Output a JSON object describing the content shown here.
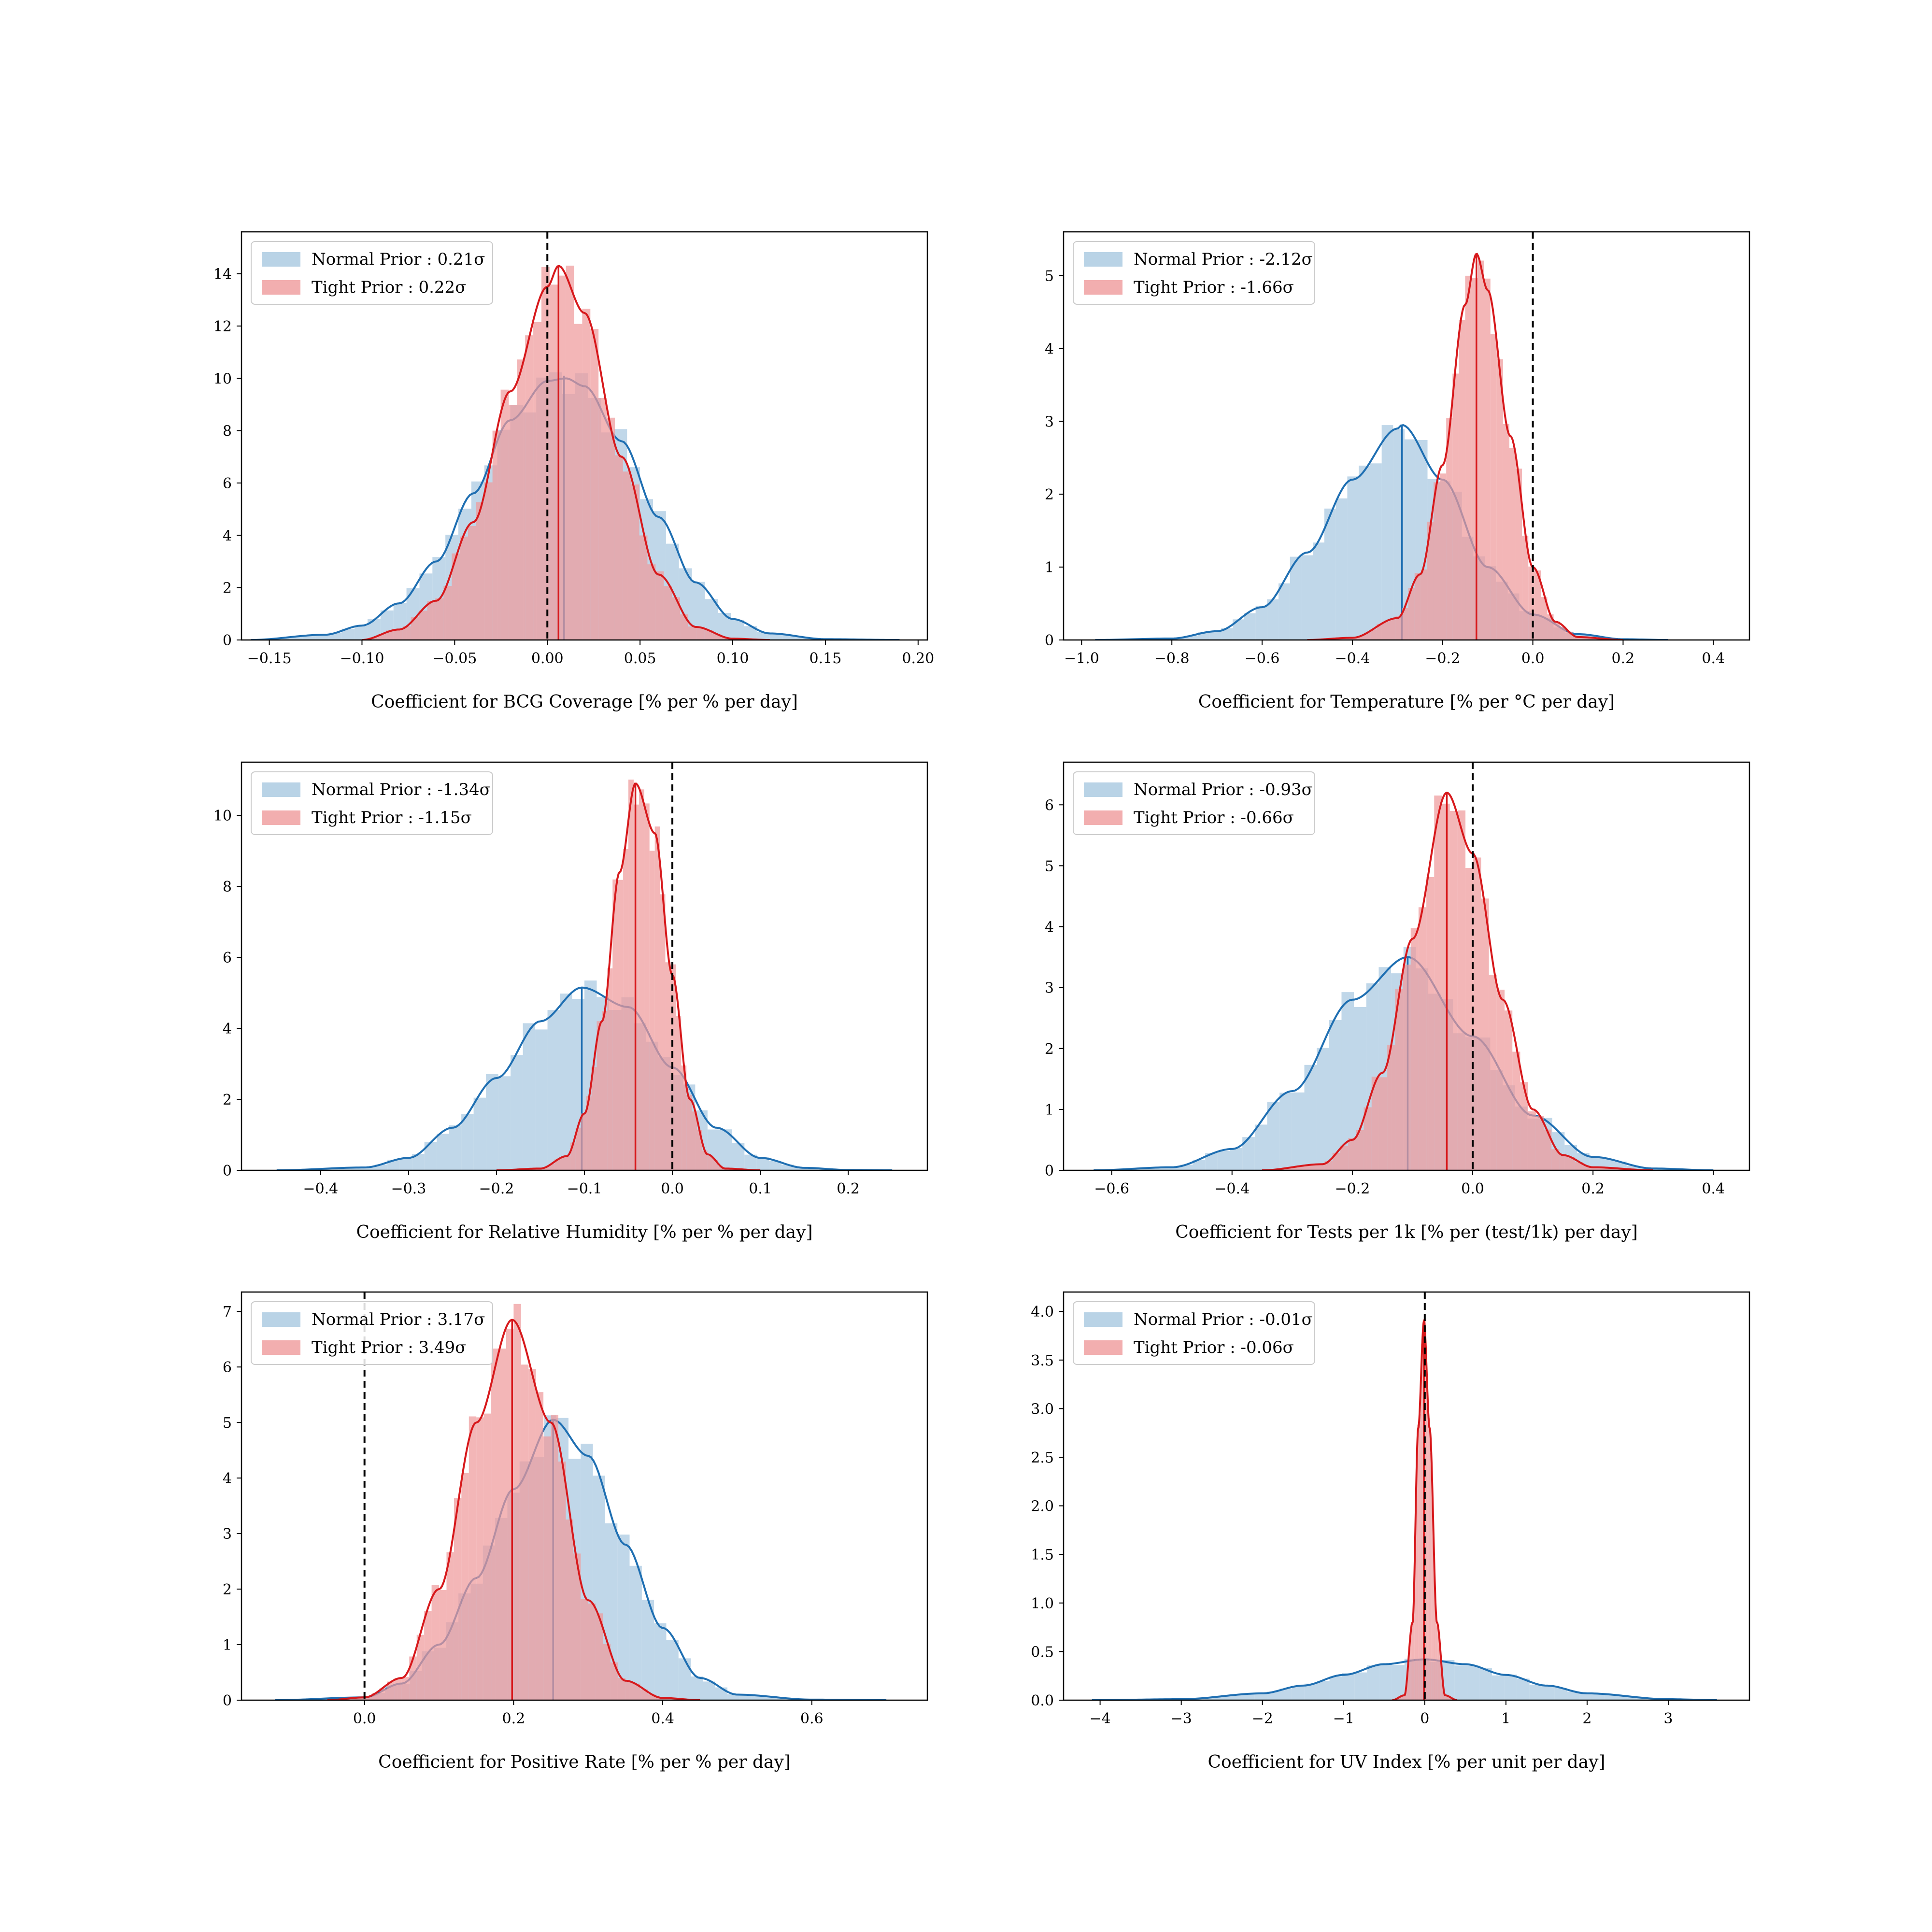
{
  "chart_data": [
    {
      "type": "histogram",
      "xlabel": "Coefficient for BCG Coverage [% per % per day]",
      "xlim": [
        -0.165,
        0.205
      ],
      "ylim": [
        0,
        15.6
      ],
      "xticks": [
        -0.15,
        -0.1,
        -0.05,
        0.0,
        0.05,
        0.1,
        0.15,
        0.2
      ],
      "xtick_labels": [
        "−0.15",
        "−0.10",
        "−0.05",
        "0.00",
        "0.05",
        "0.10",
        "0.15",
        "0.20"
      ],
      "yticks": [
        0,
        2,
        4,
        6,
        8,
        10,
        12,
        14
      ],
      "ytick_labels": [
        "0",
        "2",
        "4",
        "6",
        "8",
        "10",
        "12",
        "14"
      ],
      "reference_line_x": 0.0,
      "legend_position": "upper-left",
      "series": [
        {
          "legend": "Normal Prior : 0.21σ",
          "color": "#1f6fb2",
          "fill": "#a7c8e0",
          "mean": 0.009,
          "peak": 10.1,
          "kde_x": [
            -0.16,
            -0.12,
            -0.1,
            -0.08,
            -0.06,
            -0.04,
            -0.02,
            0.0,
            0.01,
            0.02,
            0.04,
            0.06,
            0.08,
            0.1,
            0.12,
            0.15,
            0.19
          ],
          "kde_y": [
            0.0,
            0.2,
            0.55,
            1.4,
            3.0,
            5.6,
            8.4,
            9.9,
            10.0,
            9.7,
            7.6,
            4.7,
            2.2,
            0.8,
            0.25,
            0.03,
            0.0
          ]
        },
        {
          "legend": "Tight Prior : 0.22σ",
          "color": "#d7191c",
          "fill": "#ef9a9b",
          "mean": 0.006,
          "peak": 14.3,
          "kde_x": [
            -0.1,
            -0.08,
            -0.06,
            -0.04,
            -0.02,
            0.0,
            0.006,
            0.02,
            0.04,
            0.06,
            0.08,
            0.1,
            0.12
          ],
          "kde_y": [
            0.0,
            0.4,
            1.5,
            4.5,
            9.5,
            13.5,
            14.3,
            12.5,
            7.0,
            2.5,
            0.5,
            0.05,
            0.0
          ]
        }
      ]
    },
    {
      "type": "histogram",
      "xlabel": "Coefficient for Temperature [% per °C per day]",
      "xlim": [
        -1.04,
        0.48
      ],
      "ylim": [
        0,
        5.6
      ],
      "xticks": [
        -1.0,
        -0.8,
        -0.6,
        -0.4,
        -0.2,
        0.0,
        0.2,
        0.4
      ],
      "xtick_labels": [
        "−1.0",
        "−0.8",
        "−0.6",
        "−0.4",
        "−0.2",
        "0.0",
        "0.2",
        "0.4"
      ],
      "yticks": [
        0,
        1,
        2,
        3,
        4,
        5
      ],
      "ytick_labels": [
        "0",
        "1",
        "2",
        "3",
        "4",
        "5"
      ],
      "reference_line_x": 0.0,
      "legend_position": "upper-left",
      "series": [
        {
          "legend": "Normal Prior : -2.12σ",
          "color": "#1f6fb2",
          "fill": "#a7c8e0",
          "mean": -0.29,
          "peak": 2.95,
          "kde_x": [
            -0.97,
            -0.8,
            -0.7,
            -0.6,
            -0.5,
            -0.4,
            -0.3,
            -0.29,
            -0.2,
            -0.1,
            0.0,
            0.1,
            0.2,
            0.3
          ],
          "kde_y": [
            0.0,
            0.02,
            0.12,
            0.45,
            1.2,
            2.2,
            2.9,
            2.95,
            2.2,
            1.0,
            0.35,
            0.08,
            0.01,
            0.0
          ]
        },
        {
          "legend": "Tight Prior : -1.66σ",
          "color": "#d7191c",
          "fill": "#ef9a9b",
          "mean": -0.125,
          "peak": 5.3,
          "kde_x": [
            -0.5,
            -0.4,
            -0.3,
            -0.25,
            -0.2,
            -0.15,
            -0.125,
            -0.1,
            -0.05,
            0.0,
            0.05,
            0.1,
            0.2
          ],
          "kde_y": [
            0.0,
            0.03,
            0.3,
            0.9,
            2.4,
            4.6,
            5.3,
            4.8,
            2.8,
            1.0,
            0.25,
            0.04,
            0.0
          ]
        }
      ]
    },
    {
      "type": "histogram",
      "xlabel": "Coefficient for Relative Humidity [% per % per day]",
      "xlim": [
        -0.49,
        0.29
      ],
      "ylim": [
        0,
        11.5
      ],
      "xticks": [
        -0.4,
        -0.3,
        -0.2,
        -0.1,
        0.0,
        0.1,
        0.2
      ],
      "xtick_labels": [
        "−0.4",
        "−0.3",
        "−0.2",
        "−0.1",
        "0.0",
        "0.1",
        "0.2"
      ],
      "yticks": [
        0,
        2,
        4,
        6,
        8,
        10
      ],
      "ytick_labels": [
        "0",
        "2",
        "4",
        "6",
        "8",
        "10"
      ],
      "reference_line_x": 0.0,
      "legend_position": "upper-left",
      "series": [
        {
          "legend": "Normal Prior : -1.34σ",
          "color": "#1f6fb2",
          "fill": "#a7c8e0",
          "mean": -0.103,
          "peak": 5.15,
          "kde_x": [
            -0.45,
            -0.35,
            -0.3,
            -0.25,
            -0.2,
            -0.15,
            -0.103,
            -0.05,
            0.0,
            0.05,
            0.1,
            0.15,
            0.2,
            0.25
          ],
          "kde_y": [
            0.0,
            0.08,
            0.35,
            1.2,
            2.6,
            4.2,
            5.15,
            4.6,
            2.9,
            1.2,
            0.35,
            0.07,
            0.01,
            0.0
          ]
        },
        {
          "legend": "Tight Prior : -1.15σ",
          "color": "#d7191c",
          "fill": "#ef9a9b",
          "mean": -0.042,
          "peak": 10.9,
          "kde_x": [
            -0.2,
            -0.15,
            -0.12,
            -0.1,
            -0.08,
            -0.06,
            -0.042,
            -0.02,
            0.0,
            0.02,
            0.04,
            0.06,
            0.1
          ],
          "kde_y": [
            0.0,
            0.05,
            0.4,
            1.6,
            4.2,
            8.4,
            10.9,
            9.5,
            5.5,
            2.0,
            0.45,
            0.05,
            0.0
          ]
        }
      ]
    },
    {
      "type": "histogram",
      "xlabel": "Coefficient for Tests per 1k [% per (test/1k) per day]",
      "xlim": [
        -0.68,
        0.46
      ],
      "ylim": [
        0,
        6.7
      ],
      "xticks": [
        -0.6,
        -0.4,
        -0.2,
        0.0,
        0.2,
        0.4
      ],
      "xtick_labels": [
        "−0.6",
        "−0.4",
        "−0.2",
        "0.0",
        "0.2",
        "0.4"
      ],
      "yticks": [
        0,
        1,
        2,
        3,
        4,
        5,
        6
      ],
      "ytick_labels": [
        "0",
        "1",
        "2",
        "3",
        "4",
        "5",
        "6"
      ],
      "reference_line_x": 0.0,
      "legend_position": "upper-left",
      "series": [
        {
          "legend": "Normal Prior : -0.93σ",
          "color": "#1f6fb2",
          "fill": "#a7c8e0",
          "mean": -0.108,
          "peak": 3.5,
          "kde_x": [
            -0.63,
            -0.5,
            -0.4,
            -0.3,
            -0.2,
            -0.108,
            0.0,
            0.1,
            0.2,
            0.3,
            0.4
          ],
          "kde_y": [
            0.0,
            0.05,
            0.35,
            1.3,
            2.8,
            3.5,
            2.2,
            0.9,
            0.22,
            0.03,
            0.0
          ]
        },
        {
          "legend": "Tight Prior : -0.66σ",
          "color": "#d7191c",
          "fill": "#ef9a9b",
          "mean": -0.043,
          "peak": 6.2,
          "kde_x": [
            -0.35,
            -0.25,
            -0.2,
            -0.15,
            -0.1,
            -0.043,
            0.0,
            0.05,
            0.1,
            0.15,
            0.2,
            0.3
          ],
          "kde_y": [
            0.0,
            0.1,
            0.5,
            1.6,
            3.8,
            6.2,
            5.2,
            2.8,
            1.0,
            0.25,
            0.05,
            0.0
          ]
        }
      ]
    },
    {
      "type": "histogram",
      "xlabel": "Coefficient for Positive Rate [% per % per day]",
      "xlim": [
        -0.165,
        0.755
      ],
      "ylim": [
        0,
        7.35
      ],
      "xticks": [
        0.0,
        0.2,
        0.4,
        0.6
      ],
      "xtick_labels": [
        "0.0",
        "0.2",
        "0.4",
        "0.6"
      ],
      "yticks": [
        0,
        1,
        2,
        3,
        4,
        5,
        6,
        7
      ],
      "ytick_labels": [
        "0",
        "1",
        "2",
        "3",
        "4",
        "5",
        "6",
        "7"
      ],
      "reference_line_x": 0.0,
      "legend_position": "upper-left",
      "series": [
        {
          "legend": "Normal Prior : 3.17σ",
          "color": "#1f6fb2",
          "fill": "#a7c8e0",
          "mean": 0.253,
          "peak": 5.05,
          "kde_x": [
            -0.12,
            0.0,
            0.05,
            0.1,
            0.15,
            0.2,
            0.253,
            0.3,
            0.35,
            0.4,
            0.45,
            0.5,
            0.6,
            0.7
          ],
          "kde_y": [
            0.0,
            0.05,
            0.3,
            1.0,
            2.2,
            3.8,
            5.05,
            4.4,
            2.8,
            1.3,
            0.4,
            0.1,
            0.01,
            0.0
          ]
        },
        {
          "legend": "Tight Prior : 3.49σ",
          "color": "#d7191c",
          "fill": "#ef9a9b",
          "mean": 0.198,
          "peak": 6.85,
          "kde_x": [
            -0.05,
            0.0,
            0.05,
            0.1,
            0.15,
            0.198,
            0.25,
            0.3,
            0.35,
            0.4,
            0.45
          ],
          "kde_y": [
            0.0,
            0.05,
            0.4,
            2.0,
            5.0,
            6.85,
            5.0,
            1.8,
            0.35,
            0.04,
            0.0
          ]
        }
      ]
    },
    {
      "type": "histogram",
      "xlabel": "Coefficient for UV Index [% per unit per day]",
      "xlim": [
        -4.45,
        4.0
      ],
      "ylim": [
        0,
        4.2
      ],
      "xticks": [
        -4,
        -3,
        -2,
        -1,
        0,
        1,
        2,
        3
      ],
      "xtick_labels": [
        "−4",
        "−3",
        "−2",
        "−1",
        "0",
        "1",
        "2",
        "3"
      ],
      "yticks": [
        0.0,
        0.5,
        1.0,
        1.5,
        2.0,
        2.5,
        3.0,
        3.5,
        4.0
      ],
      "ytick_labels": [
        "0.0",
        "0.5",
        "1.0",
        "1.5",
        "2.0",
        "2.5",
        "3.0",
        "3.5",
        "4.0"
      ],
      "reference_line_x": 0.0,
      "legend_position": "upper-left",
      "series": [
        {
          "legend": "Normal Prior : -0.01σ",
          "color": "#1f6fb2",
          "fill": "#a7c8e0",
          "mean": -0.01,
          "peak": 0.42,
          "kde_x": [
            -4.1,
            -3.0,
            -2.0,
            -1.5,
            -1.0,
            -0.5,
            0.0,
            0.5,
            1.0,
            1.5,
            2.0,
            3.0,
            3.6
          ],
          "kde_y": [
            0.0,
            0.01,
            0.07,
            0.15,
            0.26,
            0.37,
            0.42,
            0.37,
            0.26,
            0.15,
            0.07,
            0.01,
            0.0
          ]
        },
        {
          "legend": "Tight Prior : -0.06σ",
          "color": "#d7191c",
          "fill": "#ef9a9b",
          "mean": -0.01,
          "peak": 3.9,
          "kde_x": [
            -0.4,
            -0.25,
            -0.15,
            -0.08,
            -0.01,
            0.06,
            0.15,
            0.25,
            0.4
          ],
          "kde_y": [
            0.0,
            0.05,
            0.8,
            2.8,
            3.9,
            2.8,
            0.8,
            0.05,
            0.0
          ]
        }
      ]
    }
  ]
}
